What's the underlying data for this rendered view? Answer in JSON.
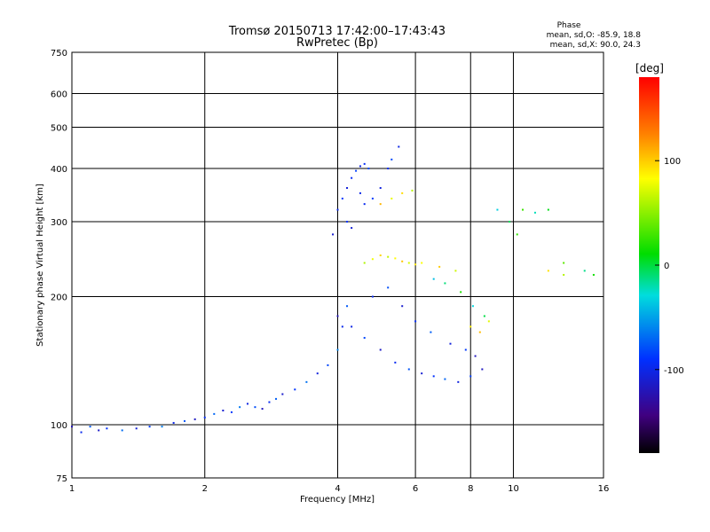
{
  "chart_data": {
    "type": "scatter",
    "title": "Tromsø 20150713 17:42:00–17:43:43",
    "subtitle": "RwPretec (Bp)",
    "xlabel": "Frequency [MHz]",
    "ylabel": "Stationary phase Virtual Height [km]",
    "x_scale": "log",
    "y_scale": "log",
    "xlim": [
      1,
      16
    ],
    "ylim": [
      75,
      750
    ],
    "x_ticks": [
      1,
      2,
      4,
      6,
      8,
      10,
      16
    ],
    "y_ticks": [
      75,
      100,
      200,
      300,
      400,
      500,
      600,
      750
    ],
    "grid": true,
    "stats": {
      "heading": "Phase",
      "line_o": "mean, sd,O: -85.9, 18.8",
      "line_x": "mean, sd,X:  90.0, 24.3"
    },
    "colorbar": {
      "label": "[deg]",
      "range": [
        -180,
        180
      ],
      "ticks": [
        100,
        0,
        -100
      ]
    },
    "series": [
      {
        "color_value_range": [
          -120,
          -60
        ],
        "points": [
          [
            1.0,
            99
          ],
          [
            1.05,
            96
          ],
          [
            1.1,
            99
          ],
          [
            1.15,
            97
          ],
          [
            1.2,
            98
          ],
          [
            1.3,
            97
          ],
          [
            1.4,
            98
          ],
          [
            1.5,
            99
          ],
          [
            1.6,
            99
          ],
          [
            1.7,
            101
          ],
          [
            1.8,
            102
          ],
          [
            1.9,
            103
          ],
          [
            2.0,
            104
          ],
          [
            2.1,
            106
          ],
          [
            2.2,
            108
          ],
          [
            2.3,
            107
          ],
          [
            2.4,
            110
          ],
          [
            2.5,
            112
          ],
          [
            2.6,
            110
          ],
          [
            2.7,
            109
          ],
          [
            2.8,
            113
          ],
          [
            2.9,
            115
          ],
          [
            3.0,
            118
          ],
          [
            3.2,
            121
          ],
          [
            3.4,
            126
          ],
          [
            3.6,
            132
          ],
          [
            3.8,
            138
          ],
          [
            4.0,
            150
          ],
          [
            4.1,
            170
          ],
          [
            4.2,
            190
          ]
        ]
      },
      {
        "color_value_range": [
          -110,
          -80
        ],
        "points": [
          [
            3.9,
            280
          ],
          [
            4.0,
            320
          ],
          [
            4.1,
            340
          ],
          [
            4.2,
            360
          ],
          [
            4.3,
            380
          ],
          [
            4.4,
            395
          ],
          [
            4.5,
            405
          ],
          [
            4.6,
            410
          ],
          [
            4.7,
            400
          ],
          [
            4.5,
            350
          ],
          [
            4.2,
            300
          ],
          [
            4.3,
            290
          ],
          [
            4.6,
            330
          ],
          [
            4.8,
            340
          ],
          [
            5.0,
            360
          ],
          [
            5.2,
            400
          ],
          [
            5.3,
            420
          ],
          [
            5.5,
            450
          ]
        ]
      },
      {
        "color_value_range": [
          -120,
          -70
        ],
        "points": [
          [
            4.0,
            180
          ],
          [
            4.3,
            170
          ],
          [
            4.6,
            160
          ],
          [
            5.0,
            150
          ],
          [
            5.4,
            140
          ],
          [
            5.8,
            135
          ],
          [
            6.2,
            132
          ],
          [
            6.6,
            130
          ],
          [
            7.0,
            128
          ],
          [
            7.5,
            126
          ],
          [
            8.0,
            130
          ],
          [
            8.5,
            135
          ],
          [
            4.8,
            200
          ],
          [
            5.2,
            210
          ],
          [
            5.6,
            190
          ],
          [
            6.0,
            175
          ],
          [
            6.5,
            165
          ],
          [
            7.2,
            155
          ],
          [
            7.8,
            150
          ],
          [
            8.2,
            145
          ]
        ]
      },
      {
        "color_value_range": [
          60,
          110
        ],
        "points": [
          [
            4.6,
            240
          ],
          [
            4.8,
            245
          ],
          [
            5.0,
            250
          ],
          [
            5.2,
            248
          ],
          [
            5.4,
            246
          ],
          [
            5.6,
            242
          ],
          [
            5.8,
            240
          ],
          [
            6.0,
            238
          ],
          [
            5.0,
            330
          ],
          [
            5.3,
            340
          ],
          [
            5.6,
            350
          ],
          [
            5.9,
            355
          ],
          [
            6.2,
            240
          ],
          [
            6.8,
            235
          ],
          [
            7.4,
            230
          ],
          [
            8.0,
            170
          ],
          [
            8.4,
            165
          ],
          [
            8.8,
            175
          ],
          [
            12,
            230
          ],
          [
            13,
            225
          ]
        ]
      },
      {
        "color_value_range": [
          -40,
          40
        ],
        "points": [
          [
            6.6,
            220
          ],
          [
            7.0,
            215
          ],
          [
            7.6,
            205
          ],
          [
            8.1,
            190
          ],
          [
            8.6,
            180
          ],
          [
            10.5,
            320
          ],
          [
            11.2,
            315
          ],
          [
            12,
            320
          ],
          [
            13,
            240
          ],
          [
            14.5,
            230
          ],
          [
            15.2,
            225
          ],
          [
            9.2,
            320
          ],
          [
            9.8,
            300
          ],
          [
            10.2,
            280
          ]
        ]
      }
    ]
  }
}
